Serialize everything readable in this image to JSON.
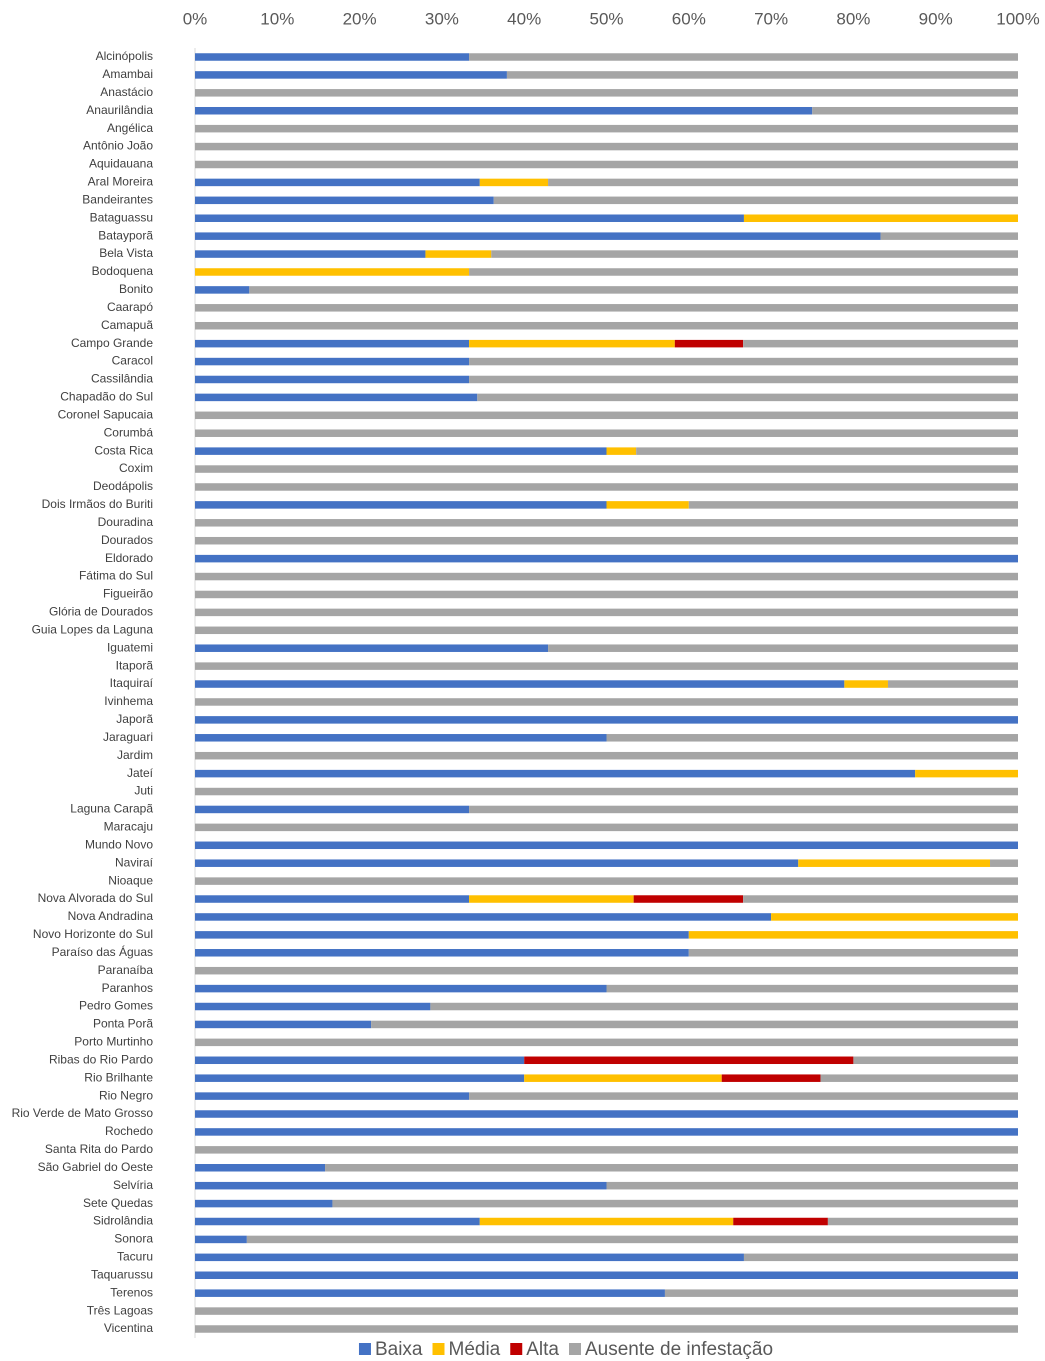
{
  "chart_data": {
    "type": "stacked-bar-horizontal",
    "categories": [
      "Alcinópolis",
      "Amambai",
      "Anastácio",
      "Anaurilândia",
      "Angélica",
      "Antônio João",
      "Aquidauana",
      "Aral Moreira",
      "Bandeirantes",
      "Bataguassu",
      "Batayporã",
      "Bela Vista",
      "Bodoquena",
      "Bonito",
      "Caarapó",
      "Camapuã",
      "Campo Grande",
      "Caracol",
      "Cassilândia",
      "Chapadão do Sul",
      "Coronel Sapucaia",
      "Corumbá",
      "Costa Rica",
      "Coxim",
      "Deodápolis",
      "Dois Irmãos do Buriti",
      "Douradina",
      "Dourados",
      "Eldorado",
      "Fátima do Sul",
      "Figueirão",
      "Glória de Dourados",
      "Guia Lopes da Laguna",
      "Iguatemi",
      "Itaporã",
      "Itaquiraí",
      "Ivinhema",
      "Japorã",
      "Jaraguari",
      "Jardim",
      "Jateí",
      "Juti",
      "Laguna Carapã",
      "Maracaju",
      "Mundo Novo",
      "Naviraí",
      "Nioaque",
      "Nova Alvorada do Sul",
      "Nova Andradina",
      "Novo Horizonte do Sul",
      "Paraíso das Águas",
      "Paranaíba",
      "Paranhos",
      "Pedro Gomes",
      "Ponta Porã",
      "Porto Murtinho",
      "Ribas do Rio Pardo",
      "Rio Brilhante",
      "Rio Negro",
      "Rio Verde de Mato Grosso",
      "Rochedo",
      "Santa Rita do Pardo",
      "São Gabriel do Oeste",
      "Selvíria",
      "Sete Quedas",
      "Sidrolândia",
      "Sonora",
      "Tacuru",
      "Taquarussu",
      "Terenos",
      "Três Lagoas",
      "Vicentina"
    ],
    "series": [
      {
        "name": "Baixa",
        "color": "#4472c4",
        "values": [
          33.3,
          37.9,
          0,
          75,
          0,
          0,
          0,
          34.6,
          36.3,
          66.7,
          83.3,
          28,
          0,
          6.6,
          0,
          0,
          33.3,
          33.3,
          33.3,
          34.3,
          0,
          0,
          50,
          0,
          0,
          50,
          0,
          0,
          100,
          0,
          0,
          0,
          0,
          42.9,
          0,
          78.9,
          0,
          100,
          50,
          0,
          87.5,
          0,
          33.3,
          0,
          100,
          73.3,
          0,
          33.3,
          70,
          60,
          60,
          0,
          50,
          28.6,
          21.4,
          0,
          40,
          40,
          33.3,
          100,
          100,
          0,
          15.8,
          50,
          16.7,
          34.6,
          6.3,
          66.7,
          100,
          57.1,
          0,
          0
        ]
      },
      {
        "name": "Média",
        "color": "#ffc000",
        "values": [
          0,
          0,
          0,
          0,
          0,
          0,
          0,
          8.3,
          0,
          33.3,
          0,
          8,
          33.3,
          0,
          0,
          0,
          25,
          0,
          0,
          0,
          0,
          0,
          3.6,
          0,
          0,
          10,
          0,
          0,
          0,
          0,
          0,
          0,
          0,
          0,
          0,
          5.3,
          0,
          0,
          0,
          0,
          12.5,
          0,
          0,
          0,
          0,
          23.3,
          0,
          20,
          30,
          40,
          0,
          0,
          0,
          0,
          0,
          0,
          0,
          24,
          0,
          0,
          0,
          0,
          0,
          0,
          0,
          30.8,
          0,
          0,
          0,
          0,
          0,
          0
        ]
      },
      {
        "name": "Alta",
        "color": "#c00000",
        "values": [
          0,
          0,
          0,
          0,
          0,
          0,
          0,
          0,
          0,
          0,
          0,
          0,
          0,
          0,
          0,
          0,
          8.3,
          0,
          0,
          0,
          0,
          0,
          0,
          0,
          0,
          0,
          0,
          0,
          0,
          0,
          0,
          0,
          0,
          0,
          0,
          0,
          0,
          0,
          0,
          0,
          0,
          0,
          0,
          0,
          0,
          0,
          0,
          13.3,
          0,
          0,
          0,
          0,
          0,
          0,
          0,
          0,
          40,
          12,
          0,
          0,
          0,
          0,
          0,
          0,
          0,
          11.5,
          0,
          0,
          0,
          0,
          0,
          0
        ]
      },
      {
        "name": "Ausente de infestação",
        "color": "#a5a5a5",
        "values": [
          66.7,
          62.1,
          100,
          25,
          100,
          100,
          100,
          57.1,
          63.7,
          0,
          16.7,
          64,
          66.7,
          93.4,
          100,
          100,
          33.4,
          66.7,
          66.7,
          65.7,
          100,
          100,
          46.4,
          100,
          100,
          40,
          100,
          100,
          0,
          100,
          100,
          100,
          100,
          57.1,
          100,
          15.8,
          100,
          0,
          50,
          100,
          0,
          100,
          66.7,
          100,
          0,
          3.4,
          100,
          33.4,
          0,
          0,
          40,
          100,
          50,
          71.4,
          78.6,
          100,
          20,
          24,
          66.7,
          0,
          0,
          100,
          84.2,
          50,
          83.3,
          23.1,
          93.7,
          33.3,
          0,
          42.9,
          100,
          100
        ]
      }
    ],
    "xlim": [
      0,
      100
    ],
    "xticks": [
      {
        "value": 0,
        "label": "0%"
      },
      {
        "value": 10,
        "label": "10%"
      },
      {
        "value": 20,
        "label": "20%"
      },
      {
        "value": 30,
        "label": "30%"
      },
      {
        "value": 40,
        "label": "40%"
      },
      {
        "value": 50,
        "label": "50%"
      },
      {
        "value": 60,
        "label": "60%"
      },
      {
        "value": 70,
        "label": "70%"
      },
      {
        "value": 80,
        "label": "80%"
      },
      {
        "value": 90,
        "label": "90%"
      },
      {
        "value": 100,
        "label": "100%"
      }
    ],
    "grid": false,
    "legend": "bottom"
  }
}
